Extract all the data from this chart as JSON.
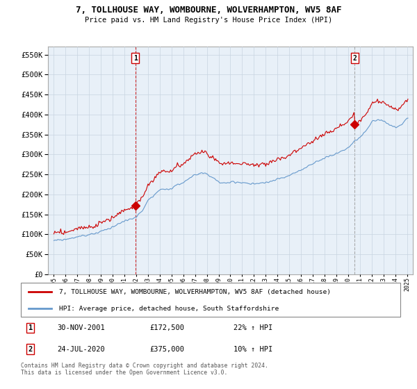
{
  "title": "7, TOLLHOUSE WAY, WOMBOURNE, WOLVERHAMPTON, WV5 8AF",
  "subtitle": "Price paid vs. HM Land Registry's House Price Index (HPI)",
  "legend_line1": "7, TOLLHOUSE WAY, WOMBOURNE, WOLVERHAMPTON, WV5 8AF (detached house)",
  "legend_line2": "HPI: Average price, detached house, South Staffordshire",
  "footnote": "Contains HM Land Registry data © Crown copyright and database right 2024.\nThis data is licensed under the Open Government Licence v3.0.",
  "annotation1_label": "1",
  "annotation1_date": "30-NOV-2001",
  "annotation1_price": "£172,500",
  "annotation1_hpi": "22% ↑ HPI",
  "annotation2_label": "2",
  "annotation2_date": "24-JUL-2020",
  "annotation2_price": "£375,000",
  "annotation2_hpi": "10% ↑ HPI",
  "red_color": "#cc0000",
  "blue_color": "#6699cc",
  "chart_bg": "#e8f0f8",
  "grid_color": "#c8d4e0",
  "background_color": "#ffffff",
  "ylim": [
    0,
    570000
  ],
  "yticks": [
    0,
    50000,
    100000,
    150000,
    200000,
    250000,
    300000,
    350000,
    400000,
    450000,
    500000,
    550000
  ],
  "sale1_x": 2001.917,
  "sale1_y": 172500,
  "sale2_x": 2020.556,
  "sale2_y": 375000,
  "xlim_left": 1994.5,
  "xlim_right": 2025.5
}
